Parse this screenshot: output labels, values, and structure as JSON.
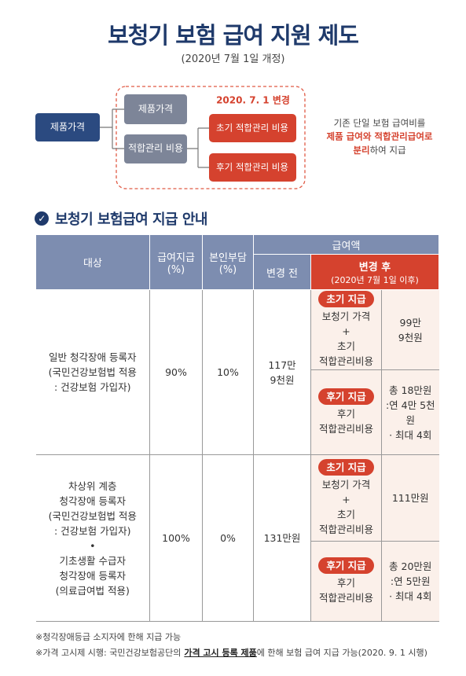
{
  "header": {
    "title": "보청기 보험 급여 지원 제도",
    "subtitle": "(2020년 7월 1일 개정)"
  },
  "diagram": {
    "source": "제품가격",
    "parts": [
      "제품가격",
      "적합관리 비용"
    ],
    "change_label": "2020. 7. 1 변경",
    "split": [
      "초기 적합관리 비용",
      "후기 적합관리 비용"
    ],
    "note": {
      "line1": "기존 단일 보험 급여비를",
      "line2": "제품 급여와 적합관리급여로",
      "line3_highlight": "분리",
      "line3_rest": "하여 지급"
    }
  },
  "section_title": "보청기 보험급여 지급 안내",
  "table": {
    "headers": {
      "target": "대상",
      "pay": [
        "급여지급",
        "(%)"
      ],
      "self": [
        "본인부담",
        "(%)"
      ],
      "amount": "급여액",
      "before": "변경 전",
      "after": "변경 후",
      "after_date": "(2020년 7월 1일 이후)"
    },
    "rows": [
      {
        "target": [
          "일반 청각장애 등록자",
          "(국민건강보험법 적용",
          ": 건강보험 가입자)"
        ],
        "pay": "90%",
        "self": "10%",
        "before": [
          "117만",
          "9천원"
        ],
        "payments": [
          {
            "badge": "초기 지급",
            "desc": [
              "보청기 가격",
              "+",
              "초기",
              "적합관리비용"
            ],
            "amount": [
              "99만",
              "9천원"
            ]
          },
          {
            "badge": "후기 지급",
            "desc": [
              "후기",
              "적합관리비용"
            ],
            "amount": [
              "총 18만원",
              ":연 4만 5천원",
              "· 최대 4회"
            ]
          }
        ]
      },
      {
        "target": [
          "차상위 계층",
          "청각장애 등록자",
          "(국민건강보험법 적용",
          ": 건강보험 가입자)",
          "•",
          "기초생활 수급자",
          "청각장애 등록자",
          "(의료급여법 적용)"
        ],
        "pay": "100%",
        "self": "0%",
        "before": [
          "131만원"
        ],
        "payments": [
          {
            "badge": "초기 지급",
            "desc": [
              "보청기 가격",
              "+",
              "초기",
              "적합관리비용"
            ],
            "amount": [
              "111만원"
            ]
          },
          {
            "badge": "후기 지급",
            "desc": [
              "후기",
              "적합관리비용"
            ],
            "amount": [
              "총 20만원",
              ":연 5만원",
              "· 최대 4회"
            ]
          }
        ]
      }
    ]
  },
  "footnotes": {
    "line1": "※청각장애등급 소지자에 한해 지급 가능",
    "line2_before": "※가격 고시제 시행: 국민건강보험공단의",
    "line2_bold": "가격 고시 등록 제품",
    "line2_after": "에 한해 보험 급여 지급 가능(2020. 9. 1 시행)"
  }
}
